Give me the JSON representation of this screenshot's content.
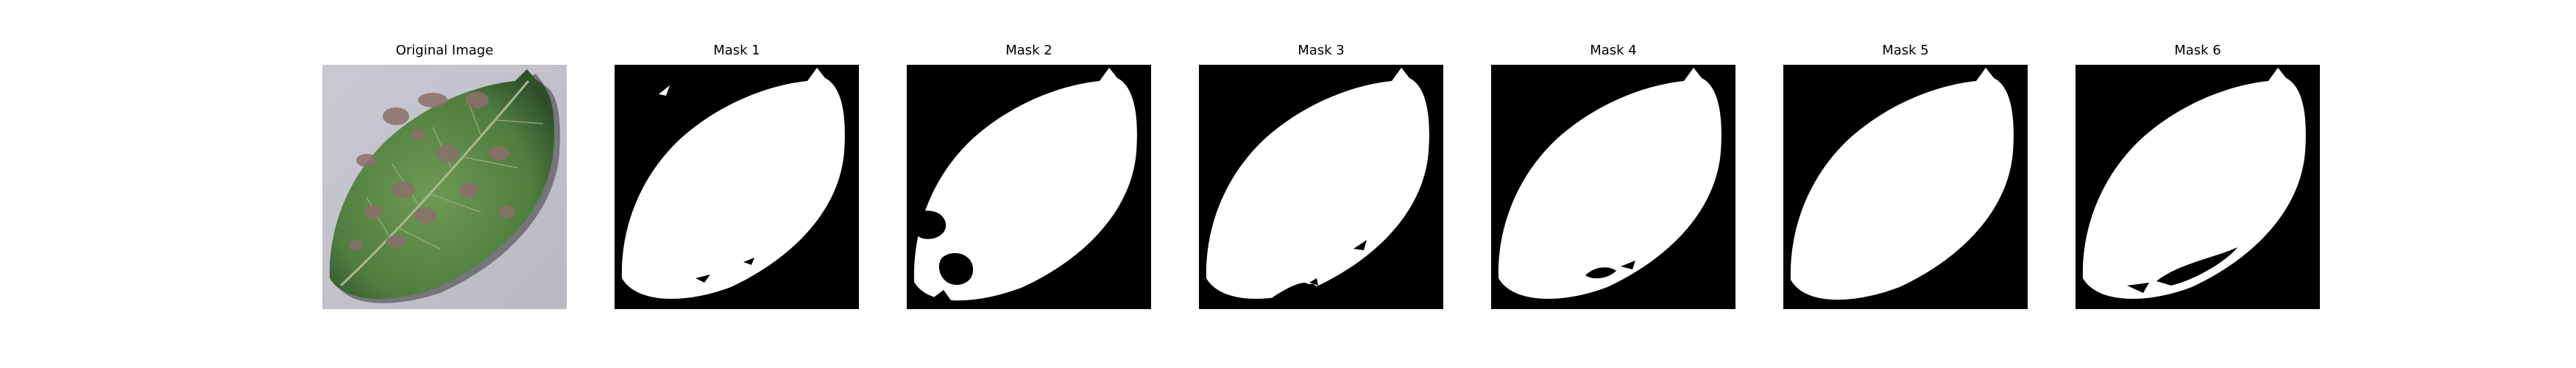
{
  "figure": {
    "panels": [
      {
        "title": "Original Image",
        "kind": "leaf-photo"
      },
      {
        "title": "Mask 1",
        "kind": "mask",
        "variant": "clean",
        "colors": {
          "background": "#000000",
          "foreground": "#ffffff"
        }
      },
      {
        "title": "Mask 2",
        "kind": "mask",
        "variant": "large-hole",
        "colors": {
          "background": "#000000",
          "foreground": "#ffffff"
        }
      },
      {
        "title": "Mask 3",
        "kind": "mask",
        "variant": "small-notches",
        "colors": {
          "background": "#000000",
          "foreground": "#ffffff"
        }
      },
      {
        "title": "Mask 4",
        "kind": "mask",
        "variant": "bottom-gaps",
        "colors": {
          "background": "#000000",
          "foreground": "#ffffff"
        }
      },
      {
        "title": "Mask 5",
        "kind": "mask",
        "variant": "smooth",
        "colors": {
          "background": "#000000",
          "foreground": "#ffffff"
        }
      },
      {
        "title": "Mask 6",
        "kind": "mask",
        "variant": "lower-hole",
        "colors": {
          "background": "#000000",
          "foreground": "#ffffff"
        }
      }
    ]
  }
}
